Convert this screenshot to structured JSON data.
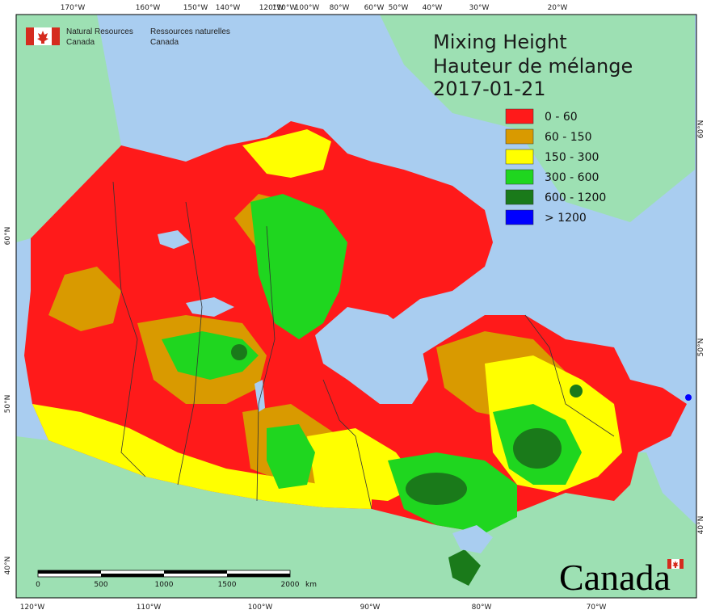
{
  "header": {
    "agency_en_line1": "Natural Resources",
    "agency_en_line2": "Canada",
    "agency_fr_line1": "Ressources naturelles",
    "agency_fr_line2": "Canada"
  },
  "title": {
    "line1": "Mixing Height",
    "line2": "Hauteur de mélange",
    "date": "2017-01-21"
  },
  "legend": [
    {
      "label": "0 - 60",
      "color": "#ff1a1a"
    },
    {
      "label": "60 - 150",
      "color": "#d99a00"
    },
    {
      "label": "150 - 300",
      "color": "#ffff00"
    },
    {
      "label": "300 - 600",
      "color": "#1fd61f"
    },
    {
      "label": "600 - 1200",
      "color": "#1a7a1a"
    },
    {
      "label": "> 1200",
      "color": "#0000ff"
    }
  ],
  "top_ticks": [
    "170°W",
    "160°W",
    "150°W",
    "140°W",
    "120°W",
    "110°W",
    "100°W",
    "80°W",
    "60°W",
    "50°W",
    "40°W",
    "30°W",
    "20°W"
  ],
  "bottom_ticks": [
    "120°W",
    "110°W",
    "100°W",
    "90°W",
    "80°W",
    "70°W"
  ],
  "left_ticks": [
    "60°N",
    "50°N",
    "40°N"
  ],
  "right_ticks": [
    "60°N",
    "50°N",
    "40°N"
  ],
  "scale_bar": {
    "labels": [
      "0",
      "500",
      "1000",
      "1500",
      "2000"
    ],
    "unit": "km"
  },
  "wordmark": "Canada",
  "colors": {
    "ocean": "#a9cdf0",
    "foreign_land": "#9de0b3",
    "border": "#333333"
  }
}
